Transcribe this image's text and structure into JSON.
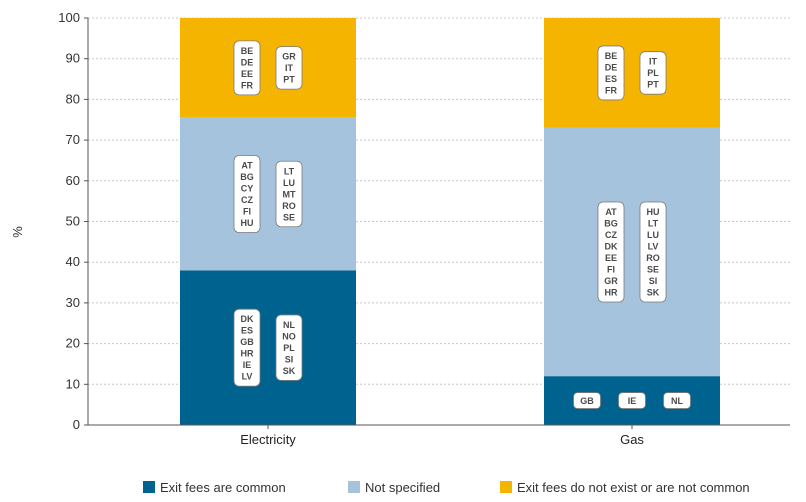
{
  "chart_data": {
    "type": "bar",
    "stacked": true,
    "ylabel": "%",
    "ylim": [
      0,
      100
    ],
    "yticks": [
      0,
      10,
      20,
      30,
      40,
      50,
      60,
      70,
      80,
      90,
      100
    ],
    "grid": "horizontal dotted",
    "legend_position": "bottom",
    "categories": [
      "Electricity",
      "Gas"
    ],
    "series": [
      {
        "name": "Exit fees are common",
        "color": "#00628f",
        "values": [
          38,
          12
        ],
        "labels": [
          [
            [
              "DK",
              "ES",
              "GB",
              "HR",
              "IE",
              "LV"
            ],
            [
              "NL",
              "NO",
              "PL",
              "SI",
              "SK"
            ]
          ],
          [
            [
              "GB"
            ],
            [
              "IE"
            ],
            [
              "NL"
            ]
          ]
        ]
      },
      {
        "name": "Not specified",
        "color": "#a5c3dc",
        "values": [
          37.5,
          61
        ],
        "labels": [
          [
            [
              "AT",
              "BG",
              "CY",
              "CZ",
              "FI",
              "HU"
            ],
            [
              "LT",
              "LU",
              "MT",
              "RO",
              "SE"
            ]
          ],
          [
            [
              "AT",
              "BG",
              "CZ",
              "DK",
              "EE",
              "FI",
              "GR",
              "HR"
            ],
            [
              "HU",
              "LT",
              "LU",
              "LV",
              "RO",
              "SE",
              "SI",
              "SK"
            ]
          ]
        ]
      },
      {
        "name": "Exit fees do not exist or are not common",
        "color": "#f5b400",
        "values": [
          24.5,
          27
        ],
        "labels": [
          [
            [
              "BE",
              "DE",
              "EE",
              "FR"
            ],
            [
              "GR",
              "IT",
              "PT"
            ]
          ],
          [
            [
              "BE",
              "DE",
              "ES",
              "FR"
            ],
            [
              "IT",
              "PL",
              "PT"
            ]
          ]
        ]
      }
    ]
  }
}
